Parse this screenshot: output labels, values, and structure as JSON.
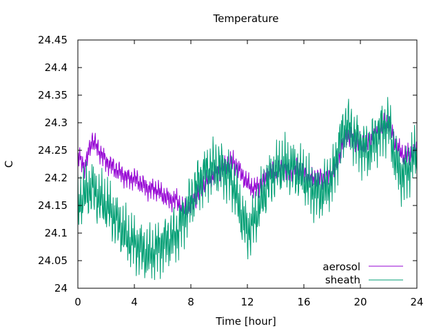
{
  "chart_data": {
    "type": "line",
    "title": "Temperature",
    "xlabel": "Time [hour]",
    "ylabel": "C",
    "xlim": [
      0,
      24
    ],
    "ylim": [
      24.0,
      24.45
    ],
    "xticks": [
      0,
      4,
      8,
      12,
      16,
      20,
      24
    ],
    "xtick_labels": [
      "0",
      "4",
      "8",
      "12",
      "16",
      "20",
      "24"
    ],
    "yticks": [
      24.0,
      24.05,
      24.1,
      24.15,
      24.2,
      24.25,
      24.3,
      24.35,
      24.4,
      24.45
    ],
    "ytick_labels": [
      "24",
      "24.05",
      "24.1",
      "24.15",
      "24.2",
      "24.25",
      "24.3",
      "24.35",
      "24.4",
      "24.45"
    ],
    "grid": false,
    "legend_position": "bottom-right",
    "x": [
      0,
      0.5,
      1,
      1.5,
      2,
      2.5,
      3,
      3.5,
      4,
      4.5,
      5,
      5.5,
      6,
      6.5,
      7,
      7.5,
      8,
      8.5,
      9,
      9.5,
      10,
      10.5,
      11,
      11.5,
      12,
      12.5,
      13,
      13.5,
      14,
      14.5,
      15,
      15.5,
      16,
      16.5,
      17,
      17.5,
      18,
      18.5,
      19,
      19.5,
      20,
      20.5,
      21,
      21.5,
      22,
      22.5,
      23,
      23.5,
      24
    ],
    "series": [
      {
        "name": "aerosol",
        "color": "#9400d3",
        "values": [
          24.24,
          24.22,
          24.27,
          24.25,
          24.23,
          24.22,
          24.21,
          24.2,
          24.2,
          24.19,
          24.18,
          24.18,
          24.17,
          24.16,
          24.16,
          24.14,
          24.15,
          24.17,
          24.19,
          24.2,
          24.21,
          24.22,
          24.23,
          24.21,
          24.19,
          24.18,
          24.19,
          24.21,
          24.21,
          24.22,
          24.21,
          24.22,
          24.21,
          24.2,
          24.2,
          24.2,
          24.21,
          24.24,
          24.28,
          24.27,
          24.26,
          24.26,
          24.28,
          24.29,
          24.3,
          24.26,
          24.24,
          24.24,
          24.25
        ]
      },
      {
        "name": "sheath",
        "color": "#009e73",
        "values": [
          24.15,
          24.17,
          24.18,
          24.16,
          24.15,
          24.13,
          24.11,
          24.09,
          24.08,
          24.07,
          24.06,
          24.07,
          24.08,
          24.09,
          24.1,
          24.13,
          24.16,
          24.19,
          24.21,
          24.22,
          24.22,
          24.21,
          24.19,
          24.14,
          24.1,
          24.12,
          24.16,
          24.19,
          24.21,
          24.22,
          24.22,
          24.21,
          24.2,
          24.18,
          24.17,
          24.18,
          24.2,
          24.26,
          24.3,
          24.28,
          24.26,
          24.25,
          24.27,
          24.29,
          24.3,
          24.23,
          24.2,
          24.22,
          24.25
        ]
      }
    ]
  }
}
